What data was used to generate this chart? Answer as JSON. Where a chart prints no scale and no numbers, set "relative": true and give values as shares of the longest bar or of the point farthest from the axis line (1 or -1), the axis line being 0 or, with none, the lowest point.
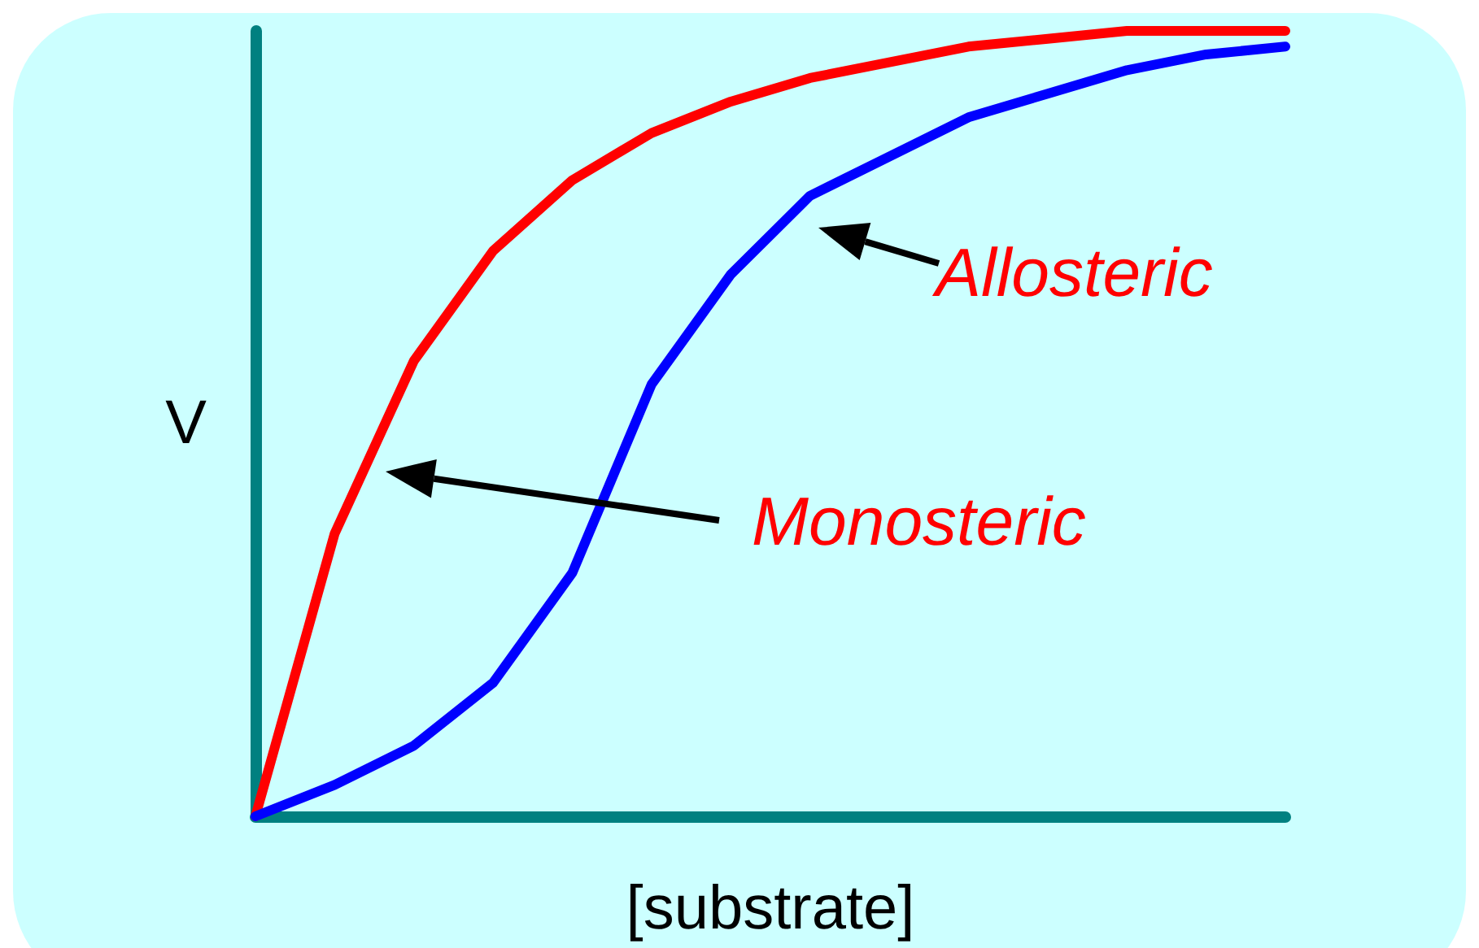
{
  "chart_data": {
    "type": "line",
    "relative": true,
    "xlabel": "[substrate]",
    "ylabel": "V",
    "categories": [
      null,
      null,
      null,
      null,
      null,
      null,
      null,
      null,
      null,
      null,
      null,
      null,
      null,
      null
    ],
    "series": [
      {
        "color": "#ff0000",
        "values": [
          0,
          0.36,
          0.58,
          0.72,
          0.81,
          0.87,
          0.91,
          0.94,
          0.96,
          0.98,
          0.99,
          1.0,
          1.0,
          1.0
        ]
      },
      {
        "color": "#0000ff",
        "values": [
          0,
          0.04,
          0.09,
          0.17,
          0.31,
          0.55,
          0.69,
          0.79,
          0.84,
          0.89,
          0.92,
          0.95,
          0.97,
          0.98
        ]
      }
    ],
    "annotations": [
      "Allosteric",
      "Monosteric"
    ],
    "marker": "none",
    "line_style": "solid"
  }
}
